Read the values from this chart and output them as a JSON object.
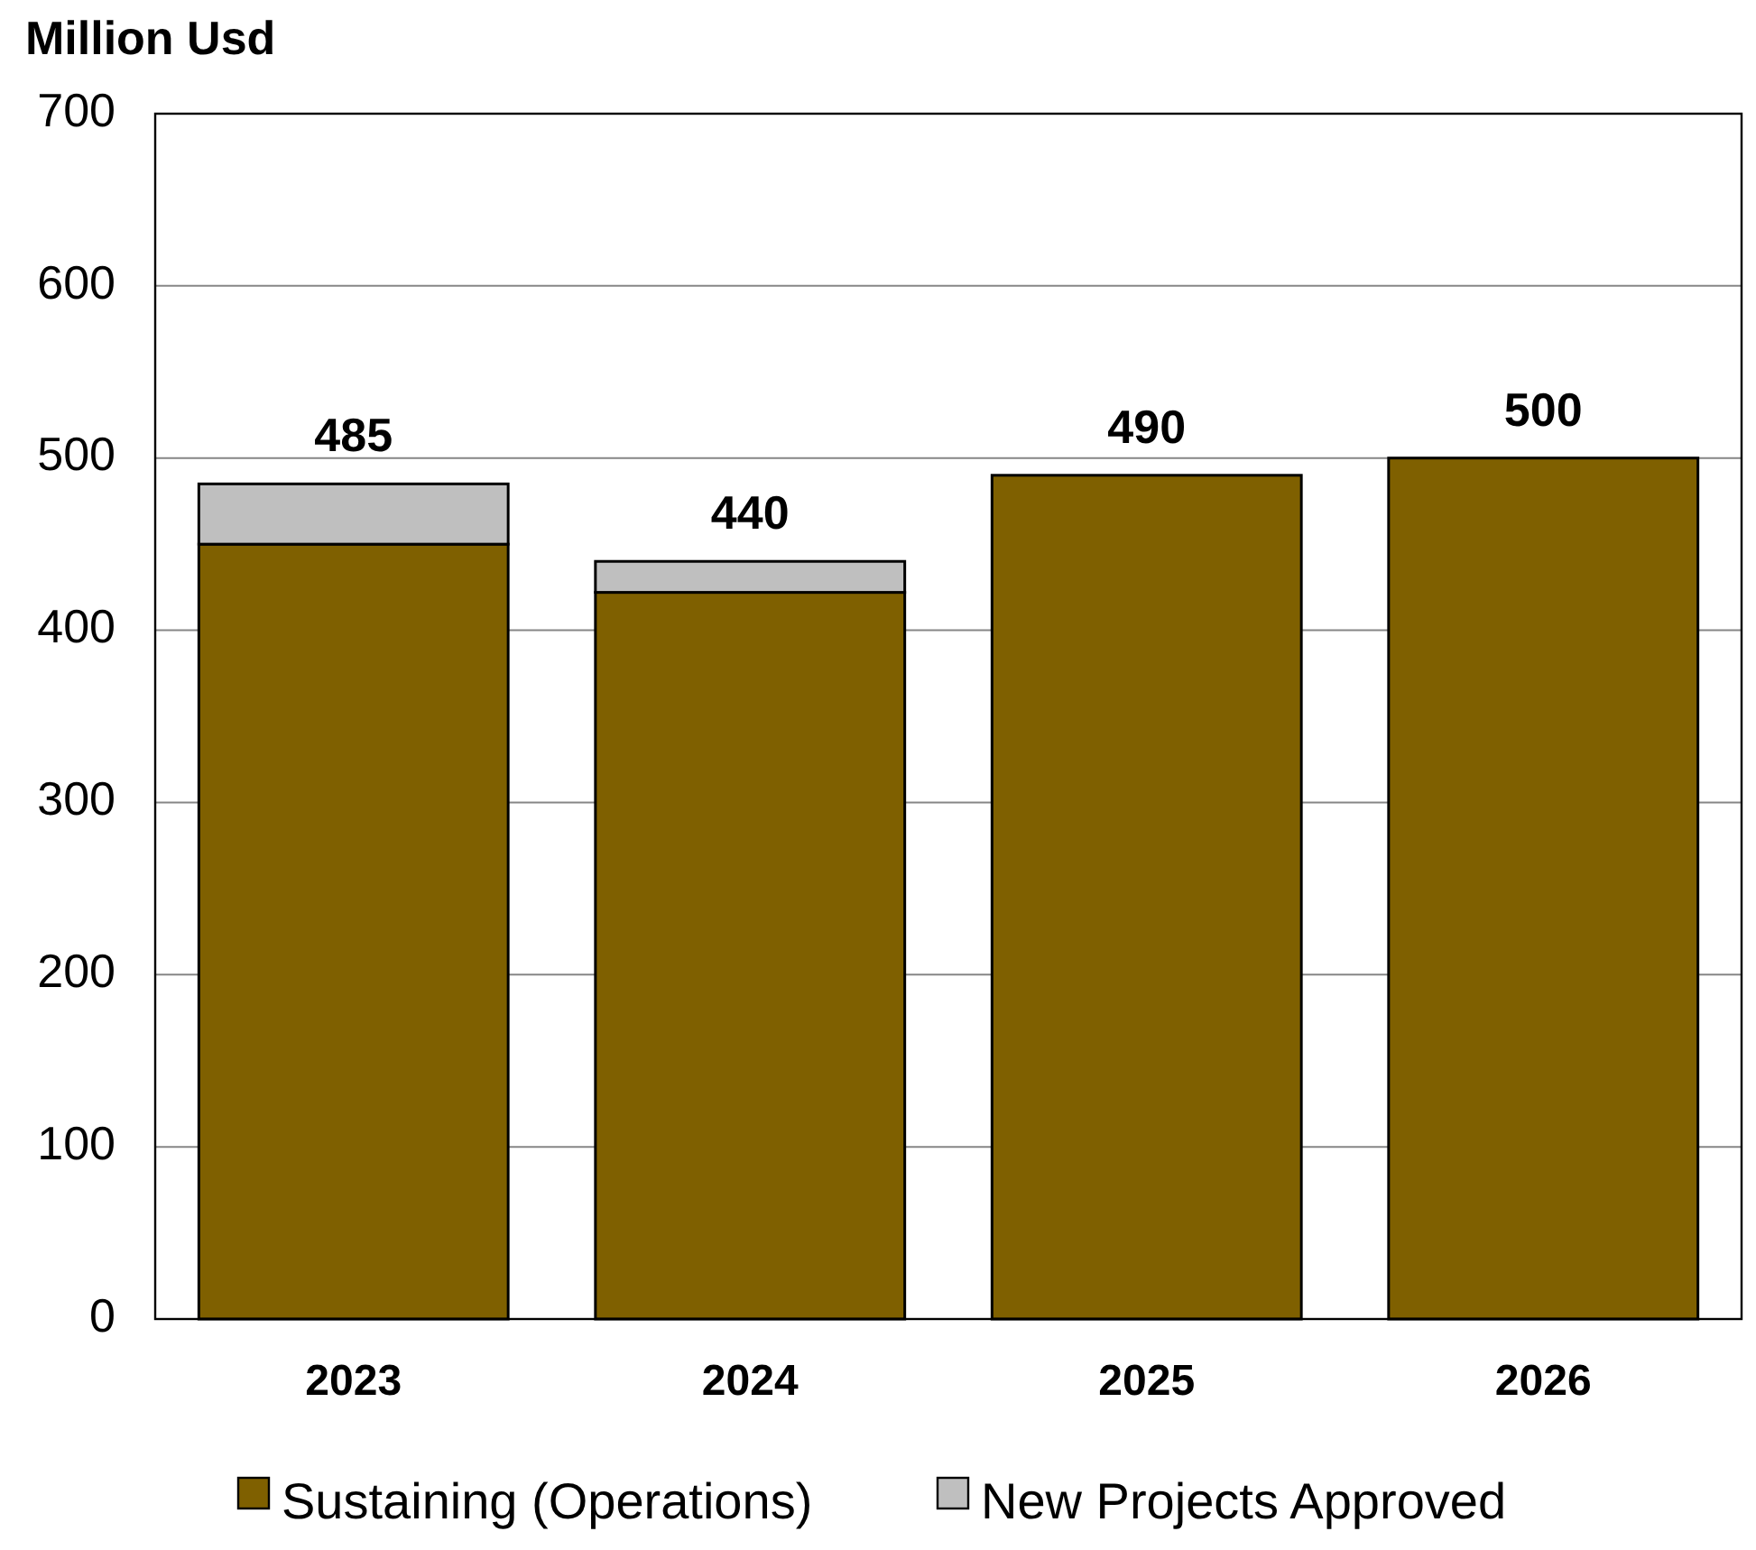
{
  "chart_data": {
    "type": "bar",
    "ylabel": "Million Usd",
    "categories": [
      "2023",
      "2024",
      "2025",
      "2026"
    ],
    "series": [
      {
        "name": "Sustaining (Operations)",
        "color": "#7f6000",
        "values": [
          450,
          422,
          490,
          500
        ]
      },
      {
        "name": "New Projects Approved",
        "color": "#bfbfbf",
        "values": [
          35,
          18,
          0,
          0
        ]
      }
    ],
    "stacked": true,
    "totals": [
      "485",
      "440",
      "490",
      "500"
    ],
    "ylim": [
      0,
      700
    ],
    "yticks": [
      0,
      100,
      200,
      300,
      400,
      500,
      600,
      700
    ],
    "grid": "y",
    "legend": "bottom"
  }
}
